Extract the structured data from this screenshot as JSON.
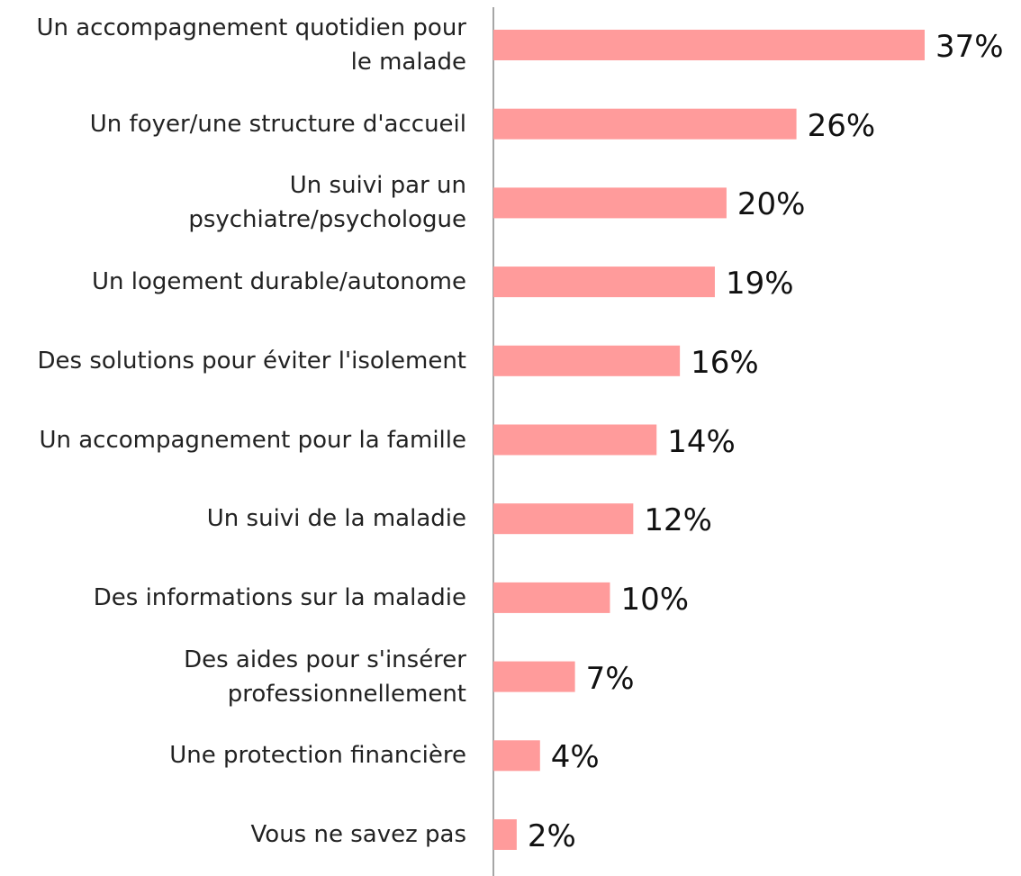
{
  "chart_data": {
    "type": "bar",
    "orientation": "horizontal",
    "categories": [
      "Un accompagnement quotidien pour le malade",
      "Un foyer/une structure d'accueil",
      "Un suivi par un psychiatre/psychologue",
      "Un logement durable/autonome",
      "Des solutions pour éviter l'isolement",
      "Un accompagnement pour la famille",
      "Un suivi de la maladie",
      "Des informations sur la maladie",
      "Des aides pour s'insérer professionnellement",
      "Une protection financière",
      "Vous ne savez pas"
    ],
    "values": [
      37,
      26,
      20,
      19,
      16,
      14,
      12,
      10,
      7,
      4,
      2
    ],
    "value_labels": [
      "37%",
      "26%",
      "20%",
      "19%",
      "16%",
      "14%",
      "12%",
      "10%",
      "7%",
      "4%",
      "2%"
    ],
    "color": "#ff9b9b"
  }
}
